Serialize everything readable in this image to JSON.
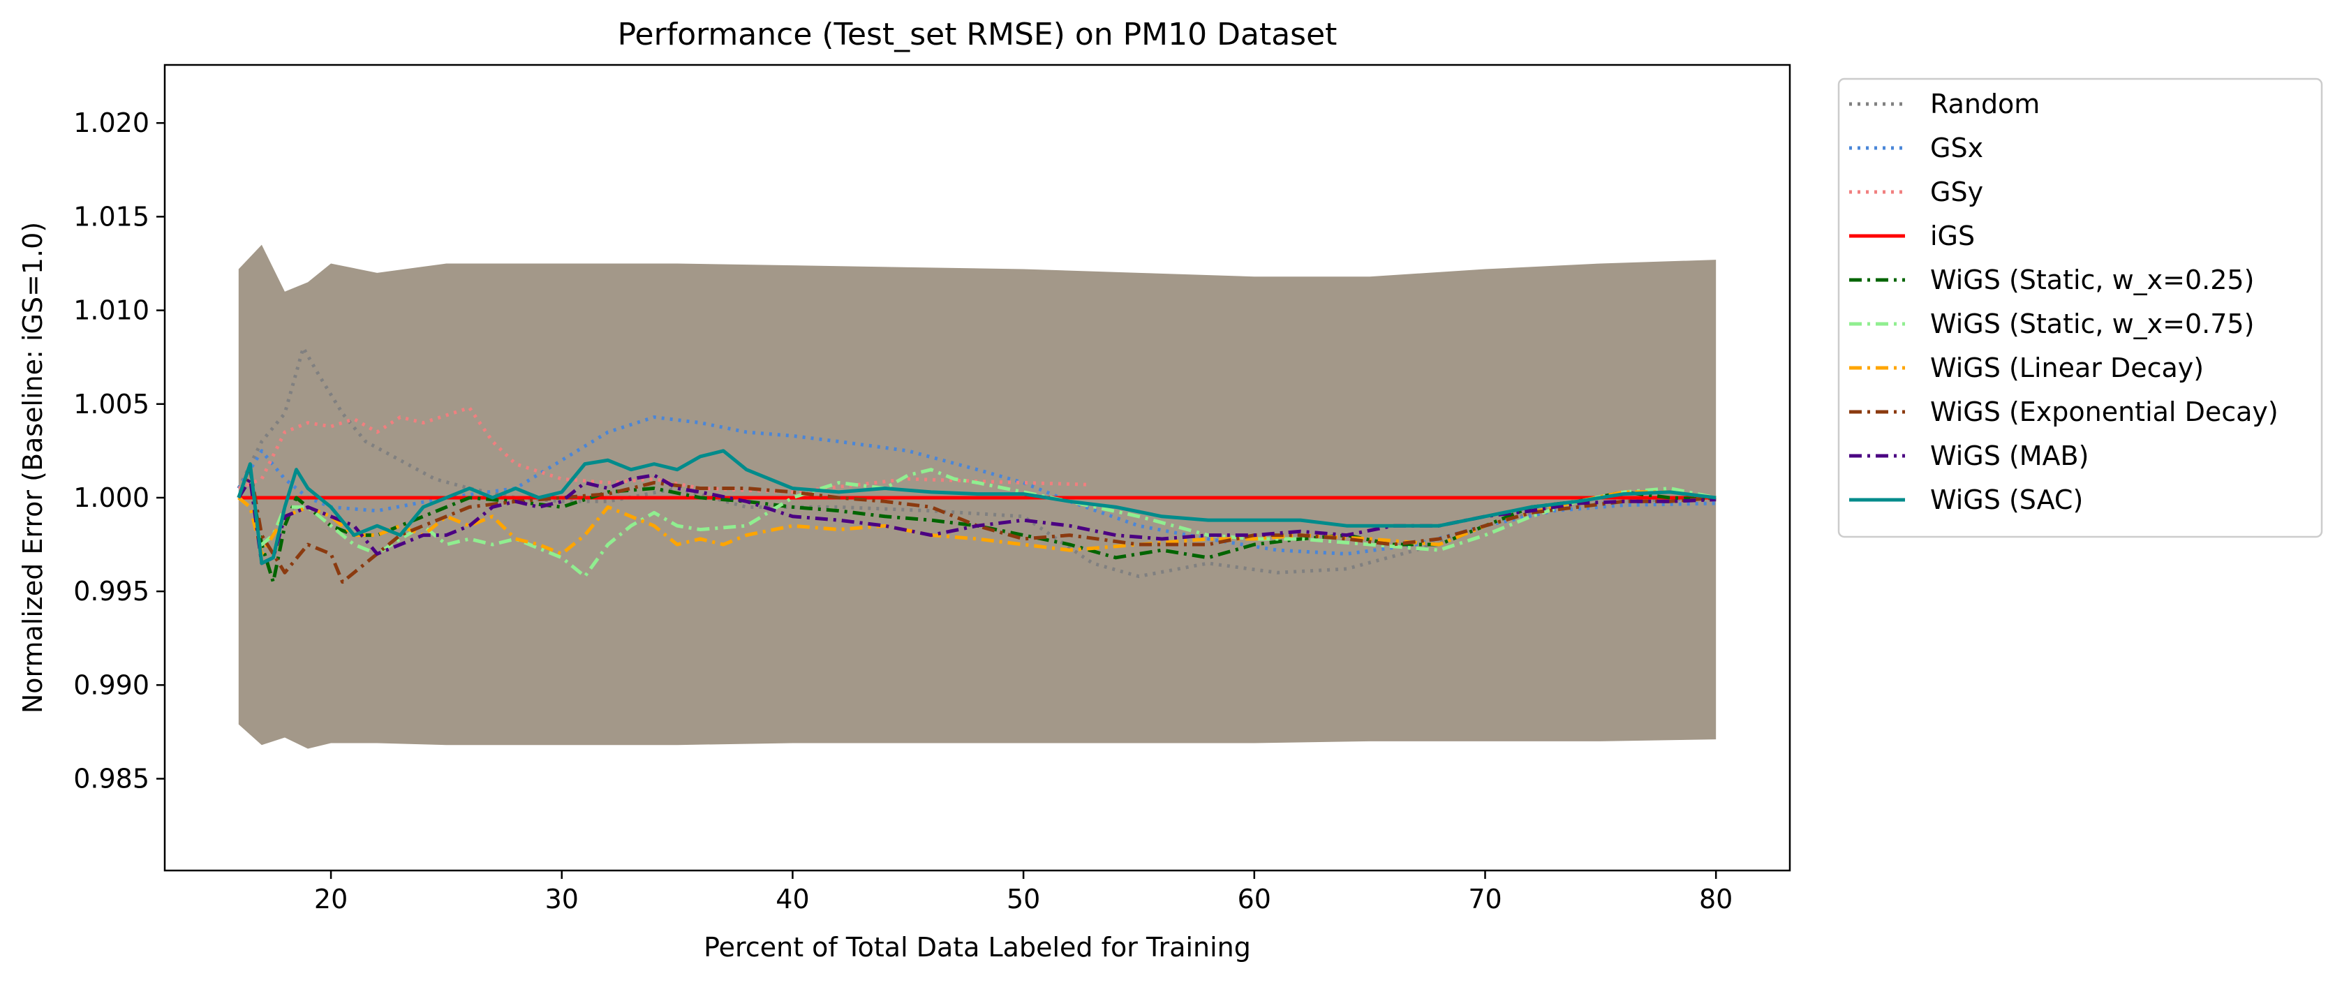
{
  "chart_data": {
    "type": "line",
    "title": "Performance (Test_set RMSE) on PM10 Dataset",
    "xlabel": "Percent of Total Data Labeled for Training",
    "ylabel": "Normalized Error (Baseline: iGS=1.0)",
    "xlim": [
      12.8,
      83.2
    ],
    "ylim": [
      0.9801,
      1.0231
    ],
    "xticks": [
      20,
      30,
      40,
      50,
      60,
      70,
      80
    ],
    "xtick_labels": [
      "20",
      "30",
      "40",
      "50",
      "60",
      "70",
      "80"
    ],
    "yticks": [
      0.985,
      0.99,
      0.995,
      1.0,
      1.005,
      1.01,
      1.015,
      1.02
    ],
    "ytick_labels": [
      "0.985",
      "0.990",
      "0.995",
      "1.000",
      "1.005",
      "1.010",
      "1.015",
      "1.020"
    ],
    "grid": false,
    "legend_position": "outside-right-top",
    "band": {
      "x": [
        16,
        17,
        18,
        19,
        20,
        22,
        25,
        30,
        35,
        40,
        45,
        50,
        55,
        60,
        65,
        70,
        75,
        80
      ],
      "upper": [
        1.0122,
        1.0135,
        1.011,
        1.0115,
        1.0125,
        1.012,
        1.0125,
        1.0125,
        1.0125,
        1.0124,
        1.0123,
        1.0122,
        1.012,
        1.0118,
        1.0118,
        1.0122,
        1.0125,
        1.0127
      ],
      "lower": [
        0.9879,
        0.9868,
        0.9872,
        0.9866,
        0.9869,
        0.9869,
        0.9868,
        0.9868,
        0.9868,
        0.9869,
        0.9869,
        0.9869,
        0.9869,
        0.9869,
        0.987,
        0.987,
        0.987,
        0.9871
      ],
      "color": "#a39889"
    },
    "series": [
      {
        "name": "Random",
        "color": "#808080",
        "dash": "dotted",
        "x": [
          16,
          17,
          18,
          18.8,
          19.5,
          20.5,
          21.5,
          23,
          24.5,
          26,
          28,
          30,
          32,
          35,
          38,
          42,
          46,
          50,
          53,
          55,
          58,
          61,
          64,
          67,
          70,
          73,
          76,
          80
        ],
        "y": [
          1.0005,
          1.003,
          1.0045,
          1.008,
          1.0065,
          1.0045,
          1.003,
          1.002,
          1.001,
          1.0005,
          1.0,
          0.9998,
          0.9998,
          1.0005,
          0.9995,
          0.9995,
          0.9993,
          0.999,
          0.9965,
          0.9958,
          0.9965,
          0.996,
          0.9962,
          0.9972,
          0.9985,
          0.9995,
          0.9998,
          1.0
        ]
      },
      {
        "name": "GSx",
        "color": "#4a86d8",
        "dash": "dotted",
        "x": [
          16,
          17,
          18,
          19,
          20,
          22,
          25,
          28,
          30,
          32,
          34,
          36,
          38,
          40,
          42,
          45,
          48,
          50,
          52,
          55,
          58,
          61,
          64,
          67,
          70,
          73,
          76,
          80
        ],
        "y": [
          1.0005,
          1.0025,
          1.001,
          1.0,
          0.9995,
          0.9993,
          1.0,
          1.0005,
          1.002,
          1.0035,
          1.0043,
          1.004,
          1.0035,
          1.0033,
          1.003,
          1.0025,
          1.0015,
          1.0008,
          0.9998,
          0.9985,
          0.9978,
          0.9972,
          0.997,
          0.9975,
          0.9985,
          0.9993,
          0.9996,
          0.9997
        ]
      },
      {
        "name": "GSy",
        "color": "#f07f7f",
        "dash": "dotted",
        "x": [
          16,
          17,
          18,
          19,
          20,
          21,
          22,
          23,
          24,
          25,
          26,
          27,
          28,
          30,
          32,
          34,
          36,
          40,
          45,
          50,
          52.8
        ],
        "y": [
          1.0005,
          1.001,
          1.0035,
          1.004,
          1.0038,
          1.0042,
          1.0035,
          1.0043,
          1.004,
          1.0044,
          1.0048,
          1.003,
          1.0018,
          1.001,
          1.0008,
          1.001,
          1.0005,
          1.0003,
          1.001,
          1.0008,
          1.0007
        ]
      },
      {
        "name": "iGS",
        "color": "#ff0000",
        "dash": "solid",
        "x": [
          16,
          80
        ],
        "y": [
          1.0,
          1.0
        ]
      },
      {
        "name": "WiGS (Static, w_x=0.25)",
        "color": "#006400",
        "dash": "dashdot",
        "x": [
          16,
          16.5,
          17,
          17.5,
          18,
          18.5,
          19,
          20,
          21,
          22,
          23,
          24,
          25,
          26,
          28,
          30,
          32,
          34,
          36,
          38,
          40,
          42,
          44,
          46,
          48,
          50,
          52,
          54,
          56,
          58,
          60,
          62,
          64,
          66,
          68,
          70,
          72,
          74,
          76,
          78,
          80
        ],
        "y": [
          1.0,
          1.001,
          0.9975,
          0.9955,
          0.9985,
          1.0,
          0.9995,
          0.9985,
          0.998,
          0.998,
          0.9985,
          0.999,
          0.9995,
          1.0,
          0.9998,
          0.9995,
          1.0003,
          1.0005,
          1.0,
          0.9998,
          0.9995,
          0.9993,
          0.999,
          0.9988,
          0.9985,
          0.998,
          0.9975,
          0.9968,
          0.9972,
          0.9968,
          0.9975,
          0.9978,
          0.998,
          0.9975,
          0.9975,
          0.9985,
          0.9995,
          0.9998,
          1.0003,
          1.0,
          0.9999
        ]
      },
      {
        "name": "WiGS (Static, w_x=0.75)",
        "color": "#90ee90",
        "dash": "dashdot",
        "x": [
          16,
          16.5,
          17,
          17.5,
          18,
          19,
          20,
          21,
          22,
          23,
          24,
          25,
          26,
          27,
          28,
          30,
          31,
          32,
          33,
          34,
          35,
          36,
          38,
          40,
          42,
          44,
          45,
          46,
          47,
          48,
          50,
          52,
          55,
          58,
          60,
          62,
          65,
          68,
          70,
          72,
          74,
          76,
          78,
          80
        ],
        "y": [
          1.0,
          0.9995,
          0.9975,
          0.998,
          0.9995,
          0.9995,
          0.9985,
          0.9975,
          0.997,
          0.9978,
          0.9985,
          0.9975,
          0.9978,
          0.9975,
          0.9978,
          0.9968,
          0.9958,
          0.9975,
          0.9985,
          0.9992,
          0.9985,
          0.9983,
          0.9985,
          1.0,
          1.0008,
          1.0005,
          1.0012,
          1.0015,
          1.001,
          1.0008,
          1.0003,
          0.9998,
          0.999,
          0.998,
          0.9978,
          0.9978,
          0.9975,
          0.9972,
          0.998,
          0.999,
          0.9998,
          1.0003,
          1.0005,
          1.0
        ]
      },
      {
        "name": "WiGS (Linear Decay)",
        "color": "#ffa500",
        "dash": "dashdot",
        "x": [
          16,
          16.5,
          17,
          17.5,
          18,
          19,
          20,
          21,
          22,
          23,
          24,
          25,
          26,
          27,
          28,
          29,
          30,
          31,
          32,
          33,
          34,
          35,
          36,
          37,
          38,
          40,
          42,
          44,
          46,
          48,
          50,
          52,
          55,
          58,
          60,
          62,
          65,
          68,
          70,
          72,
          74,
          76,
          78,
          80
        ],
        "y": [
          1.0,
          0.9995,
          0.997,
          0.998,
          0.999,
          0.9995,
          0.999,
          0.998,
          0.998,
          0.9985,
          0.998,
          0.999,
          0.9985,
          0.999,
          0.9978,
          0.9975,
          0.997,
          0.998,
          0.9995,
          0.999,
          0.9985,
          0.9975,
          0.9978,
          0.9975,
          0.998,
          0.9985,
          0.9983,
          0.9985,
          0.998,
          0.9978,
          0.9975,
          0.9972,
          0.9975,
          0.9978,
          0.9978,
          0.998,
          0.9978,
          0.9975,
          0.9985,
          0.9992,
          0.9998,
          1.0003,
          1.0003,
          1.0
        ]
      },
      {
        "name": "WiGS (Exponential Decay)",
        "color": "#8b3a0f",
        "dash": "dashdot",
        "x": [
          16,
          16.5,
          17,
          17.5,
          18,
          19,
          20,
          20.5,
          21,
          22,
          23,
          24,
          25,
          26,
          28,
          30,
          32,
          34,
          36,
          38,
          40,
          42,
          44,
          46,
          48,
          50,
          52,
          55,
          58,
          60,
          62,
          64,
          66,
          68,
          70,
          72,
          74,
          76,
          78,
          80
        ],
        "y": [
          1.0,
          1.0015,
          0.998,
          0.997,
          0.996,
          0.9975,
          0.997,
          0.9955,
          0.996,
          0.997,
          0.998,
          0.9985,
          0.999,
          0.9995,
          0.9998,
          1.0,
          1.0002,
          1.0008,
          1.0005,
          1.0005,
          1.0003,
          1.0,
          0.9998,
          0.9995,
          0.9985,
          0.9978,
          0.998,
          0.9975,
          0.9975,
          0.998,
          0.998,
          0.9978,
          0.9975,
          0.9978,
          0.9985,
          0.9992,
          0.9995,
          0.9998,
          0.9998,
          1.0
        ]
      },
      {
        "name": "WiGS (MAB)",
        "color": "#4b0082",
        "dash": "dashdot",
        "x": [
          16,
          16.5,
          17,
          17.5,
          18,
          19,
          20,
          21,
          22,
          23,
          24,
          25,
          26,
          27,
          28,
          29,
          30,
          31,
          32,
          33,
          34,
          35,
          36,
          38,
          40,
          42,
          44,
          46,
          48,
          50,
          52,
          54,
          56,
          58,
          60,
          62,
          64,
          66,
          68,
          70,
          72,
          74,
          76,
          78,
          80
        ],
        "y": [
          1.0,
          1.001,
          0.9965,
          0.9968,
          0.999,
          0.9995,
          0.999,
          0.9985,
          0.997,
          0.9975,
          0.998,
          0.998,
          0.9985,
          0.9995,
          0.9998,
          0.9995,
          0.9998,
          1.0008,
          1.0005,
          1.001,
          1.0012,
          1.0005,
          1.0003,
          0.9998,
          0.999,
          0.9988,
          0.9985,
          0.998,
          0.9985,
          0.9988,
          0.9985,
          0.998,
          0.9978,
          0.998,
          0.998,
          0.9982,
          0.998,
          0.9985,
          0.9985,
          0.999,
          0.9993,
          0.9997,
          0.9998,
          0.9998,
          0.9999
        ]
      },
      {
        "name": "WiGS (SAC)",
        "color": "#008b8b",
        "dash": "solid",
        "x": [
          16,
          16.5,
          17,
          17.5,
          18,
          18.5,
          19,
          20,
          21,
          22,
          23,
          24,
          25,
          26,
          27,
          28,
          29,
          30,
          31,
          32,
          33,
          34,
          35,
          36,
          37,
          38,
          40,
          42,
          44,
          46,
          48,
          50,
          52,
          54,
          56,
          58,
          60,
          62,
          64,
          66,
          68,
          70,
          72,
          74,
          76,
          78,
          80
        ],
        "y": [
          1.0,
          1.0018,
          0.9965,
          0.9968,
          0.9995,
          1.0015,
          1.0005,
          0.9995,
          0.998,
          0.9985,
          0.998,
          0.9995,
          1.0,
          1.0005,
          1.0,
          1.0005,
          1.0,
          1.0003,
          1.0018,
          1.002,
          1.0015,
          1.0018,
          1.0015,
          1.0022,
          1.0025,
          1.0015,
          1.0005,
          1.0003,
          1.0005,
          1.0003,
          1.0002,
          1.0002,
          0.9998,
          0.9995,
          0.999,
          0.9988,
          0.9988,
          0.9988,
          0.9985,
          0.9985,
          0.9985,
          0.999,
          0.9995,
          0.9998,
          1.0002,
          1.0003,
          1.0
        ]
      }
    ]
  }
}
